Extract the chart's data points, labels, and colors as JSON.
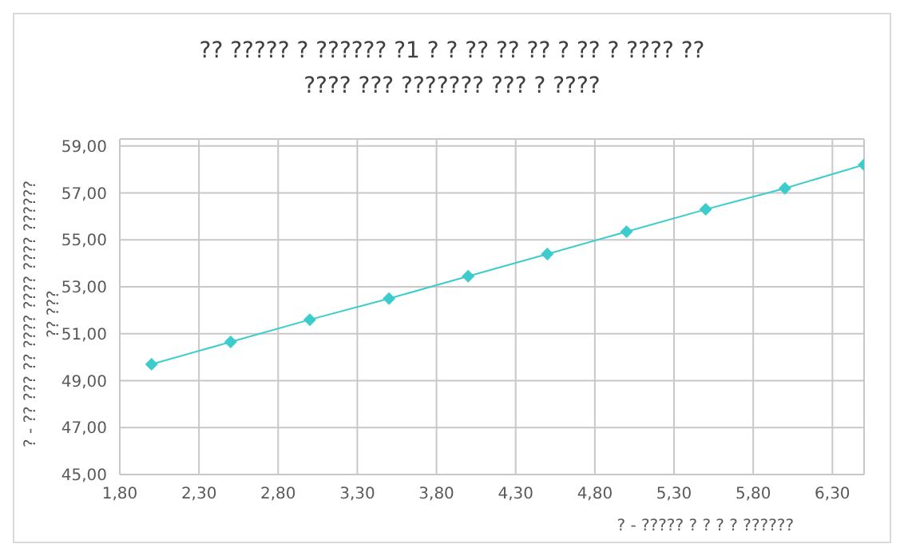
{
  "chart_data": {
    "type": "line",
    "title": "?? ????? ? ?????? ?1 ? ? ?? ?? ?? ?  ?? ? ???? ??\n???? ??? ??????? ??? ? ????",
    "xlabel": "? - ????? ? ? ? ? ??????",
    "ylabel": "? - ?? ??? ?? ???? ???? ???? ??????\n?? ???",
    "x": [
      2.0,
      2.5,
      3.0,
      3.5,
      4.0,
      4.5,
      5.0,
      5.5,
      6.0,
      6.5
    ],
    "series": [
      {
        "color": "#3ccccc",
        "values": [
          49.7,
          50.65,
          51.6,
          52.5,
          53.45,
          54.4,
          55.35,
          56.3,
          57.2,
          58.2
        ]
      }
    ],
    "xlim": [
      1.8,
      6.5
    ],
    "xticks": [
      {
        "value": 1.8,
        "label": "1,80"
      },
      {
        "value": 2.3,
        "label": "2,30"
      },
      {
        "value": 2.8,
        "label": "2,80"
      },
      {
        "value": 3.3,
        "label": "3,30"
      },
      {
        "value": 3.8,
        "label": "3,80"
      },
      {
        "value": 4.3,
        "label": "4,30"
      },
      {
        "value": 4.8,
        "label": "4,80"
      },
      {
        "value": 5.3,
        "label": "5,30"
      },
      {
        "value": 5.8,
        "label": "5,80"
      },
      {
        "value": 6.3,
        "label": "6,30"
      }
    ],
    "ylim": [
      45,
      59.3
    ],
    "yticks": [
      {
        "value": 45,
        "label": "45,00"
      },
      {
        "value": 47,
        "label": "47,00"
      },
      {
        "value": 49,
        "label": "49,00"
      },
      {
        "value": 51,
        "label": "51,00"
      },
      {
        "value": 53,
        "label": "53,00"
      },
      {
        "value": 55,
        "label": "55,00"
      },
      {
        "value": 57,
        "label": "57,00"
      },
      {
        "value": 59,
        "label": "59,00"
      }
    ],
    "grid": true,
    "marker": "diamond",
    "line_style": "solid",
    "legend": false
  }
}
